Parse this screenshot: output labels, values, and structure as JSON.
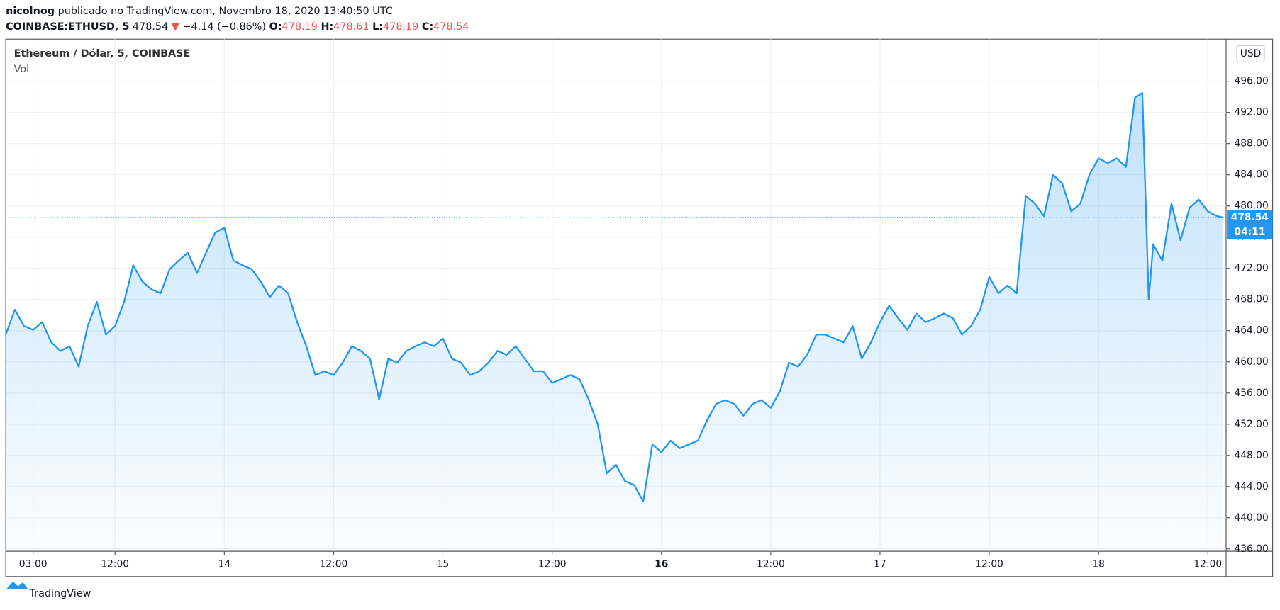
{
  "header": {
    "author": "nicolnog",
    "published": "publicado no TradingView.com, Novembro 18, 2020 13:40:50 UTC",
    "symbol": "COINBASE:ETHUSD, 5",
    "price": "478.54",
    "arrow": "▼",
    "change": "−4.14 (−0.86%)",
    "o_label": "O:",
    "o": "478.19",
    "h_label": "H:",
    "h": "478.61",
    "l_label": "L:",
    "l": "478.19",
    "c_label": "C:",
    "c": "478.54"
  },
  "footer": {
    "brand": "TradingView"
  },
  "chart_data": {
    "type": "area",
    "title": "Ethereum / Dólar, 5, COINBASE",
    "subtitle": "Vol",
    "currency": "USD",
    "color": "#2196f3",
    "last_price": 478.54,
    "countdown": "04:11",
    "grid": true,
    "xlim": [
      0,
      134
    ],
    "ylim": [
      435.7,
      501.4
    ],
    "xticks": [
      {
        "value": 3,
        "label": "03:00"
      },
      {
        "value": 12,
        "label": "12:00"
      },
      {
        "value": 24,
        "label": "14"
      },
      {
        "value": 36,
        "label": "12:00"
      },
      {
        "value": 48,
        "label": "15"
      },
      {
        "value": 60,
        "label": "12:00"
      },
      {
        "value": 72,
        "label": "16"
      },
      {
        "value": 84,
        "label": "12:00"
      },
      {
        "value": 96,
        "label": "17"
      },
      {
        "value": 108,
        "label": "12:00"
      },
      {
        "value": 120,
        "label": "18"
      },
      {
        "value": 132,
        "label": "12:00"
      }
    ],
    "yticks": [
      {
        "value": 436,
        "label": "436.00"
      },
      {
        "value": 440,
        "label": "440.00"
      },
      {
        "value": 444,
        "label": "444.00"
      },
      {
        "value": 448,
        "label": "448.00"
      },
      {
        "value": 452,
        "label": "452.00"
      },
      {
        "value": 456,
        "label": "456.00"
      },
      {
        "value": 460,
        "label": "460.00"
      },
      {
        "value": 464,
        "label": "464.00"
      },
      {
        "value": 468,
        "label": "468.00"
      },
      {
        "value": 472,
        "label": "472.00"
      },
      {
        "value": 476,
        "label": "476.00"
      },
      {
        "value": 480,
        "label": "480.00"
      },
      {
        "value": 484,
        "label": "484.00"
      },
      {
        "value": 488,
        "label": "488.00"
      },
      {
        "value": 492,
        "label": "492.00"
      },
      {
        "value": 496,
        "label": "496.00"
      }
    ],
    "x": [
      0,
      1,
      2,
      3,
      4,
      5,
      6,
      7,
      8,
      9,
      10,
      11,
      12,
      13,
      14,
      15,
      16,
      17,
      18,
      19,
      20,
      21,
      22,
      23,
      24,
      25,
      26,
      27,
      28,
      29,
      30,
      31,
      32,
      33,
      34,
      35,
      36,
      37,
      38,
      39,
      40,
      41,
      42,
      43,
      44,
      45,
      46,
      47,
      48,
      49,
      50,
      51,
      52,
      53,
      54,
      55,
      56,
      57,
      58,
      59,
      60,
      61,
      62,
      63,
      64,
      65,
      66,
      67,
      68,
      69,
      70,
      71,
      72,
      73,
      74,
      75,
      76,
      77,
      78,
      79,
      80,
      81,
      82,
      83,
      84,
      85,
      86,
      87,
      88,
      89,
      90,
      91,
      92,
      93,
      94,
      95,
      96,
      97,
      98,
      99,
      100,
      101,
      102,
      103,
      104,
      105,
      106,
      107,
      108,
      109,
      110,
      111,
      112,
      113,
      114,
      115,
      116,
      117,
      118,
      119,
      120,
      121,
      122,
      123,
      124,
      124.8,
      125.5,
      126,
      127,
      128,
      129,
      130,
      131,
      132,
      133,
      133.6
    ],
    "values": [
      463.5,
      466.7,
      464.6,
      464.1,
      465.1,
      462.5,
      461.4,
      462.0,
      459.4,
      464.6,
      467.7,
      463.5,
      464.6,
      467.7,
      472.4,
      470.3,
      469.3,
      468.8,
      471.9,
      473.0,
      474.0,
      471.4,
      474.0,
      476.6,
      477.2,
      473.0,
      472.4,
      471.9,
      470.3,
      468.3,
      469.8,
      468.8,
      465.1,
      462.0,
      458.3,
      458.8,
      458.3,
      459.9,
      462.0,
      461.4,
      460.4,
      455.2,
      460.4,
      459.9,
      461.4,
      462.0,
      462.5,
      462.0,
      463.0,
      460.4,
      459.9,
      458.3,
      458.8,
      459.9,
      461.4,
      460.9,
      462.0,
      460.4,
      458.8,
      458.8,
      457.3,
      457.8,
      458.3,
      457.8,
      455.2,
      452.0,
      445.7,
      446.8,
      444.7,
      444.2,
      442.1,
      449.4,
      448.4,
      449.9,
      448.9,
      449.4,
      449.9,
      452.5,
      454.6,
      455.1,
      454.6,
      453.1,
      454.6,
      455.1,
      454.1,
      456.2,
      459.9,
      459.4,
      460.9,
      463.5,
      463.5,
      463.0,
      462.5,
      464.6,
      460.4,
      462.5,
      465.1,
      467.2,
      465.6,
      464.1,
      466.2,
      465.1,
      465.6,
      466.2,
      465.6,
      463.5,
      464.6,
      466.7,
      470.9,
      468.8,
      469.8,
      468.8,
      481.3,
      480.3,
      478.7,
      484.0,
      482.9,
      479.3,
      480.3,
      484.0,
      486.1,
      485.5,
      486.1,
      485.0,
      493.9,
      494.5,
      468.0,
      475.1,
      473.0,
      480.3,
      475.6,
      479.8,
      480.8,
      479.3,
      478.7,
      478.54
    ]
  }
}
